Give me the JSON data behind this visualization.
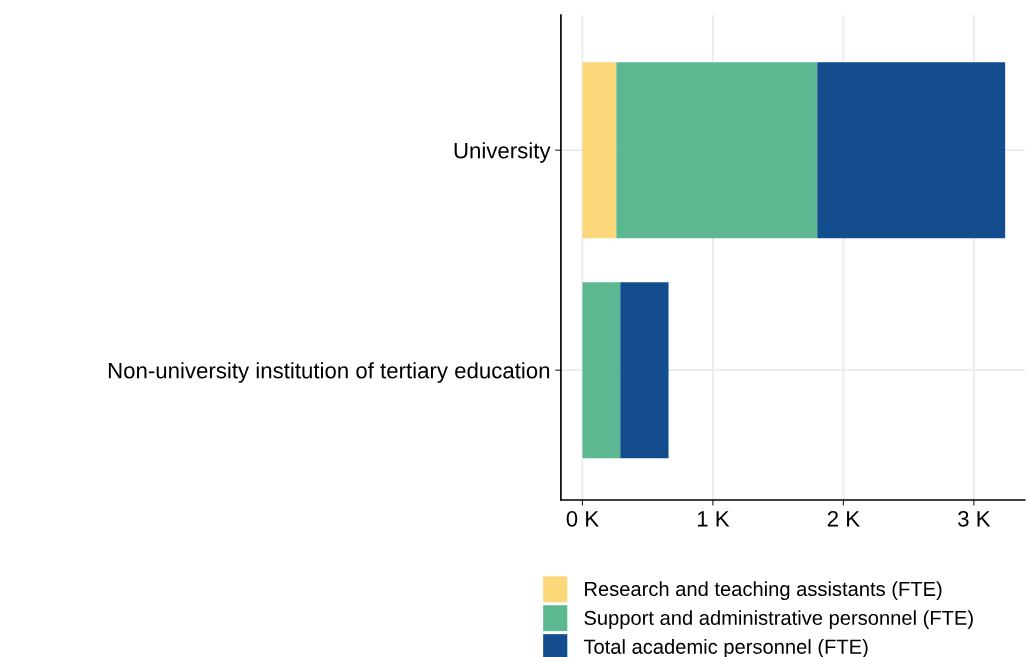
{
  "chart_data": {
    "type": "bar",
    "orientation": "horizontal",
    "stacked": true,
    "categories": [
      "University",
      "Non-university institution of tertiary education"
    ],
    "series": [
      {
        "name": "Research and teaching assistants (FTE)",
        "color": "#fdd87a",
        "values": [
          0.26,
          0
        ]
      },
      {
        "name": "Support and administrative personnel (FTE)",
        "color": "#5bb891",
        "values": [
          1.54,
          0.29
        ]
      },
      {
        "name": "Total academic personnel (FTE)",
        "color": "#134d8e",
        "values": [
          1.44,
          0.37
        ]
      }
    ],
    "xlim": [
      -0.165,
      3.39
    ],
    "xticks": [
      {
        "value": 0,
        "label": "0 K"
      },
      {
        "value": 1,
        "label": "1 K"
      },
      {
        "value": 2,
        "label": "2 K"
      },
      {
        "value": 3,
        "label": "3 K"
      }
    ],
    "grid": true,
    "legend": "bottom"
  }
}
